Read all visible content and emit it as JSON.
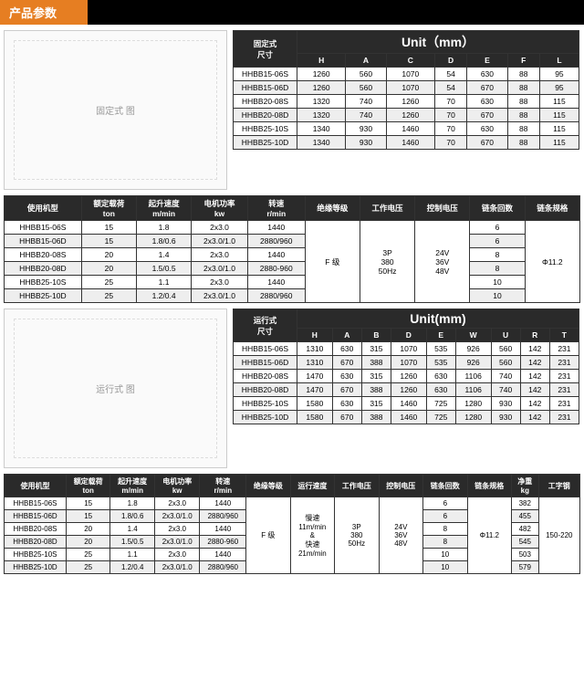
{
  "header": "产品参数",
  "t1": {
    "title": "固定式\n尺寸",
    "unit": "Unit（mm）",
    "cols": [
      "H",
      "A",
      "C",
      "D",
      "E",
      "F",
      "L"
    ],
    "rows": [
      [
        "HHBB15-06S",
        "1260",
        "560",
        "1070",
        "54",
        "630",
        "88",
        "95"
      ],
      [
        "HHBB15-06D",
        "1260",
        "560",
        "1070",
        "54",
        "670",
        "88",
        "95"
      ],
      [
        "HHBB20-08S",
        "1320",
        "740",
        "1260",
        "70",
        "630",
        "88",
        "115"
      ],
      [
        "HHBB20-08D",
        "1320",
        "740",
        "1260",
        "70",
        "670",
        "88",
        "115"
      ],
      [
        "HHBB25-10S",
        "1340",
        "930",
        "1460",
        "70",
        "630",
        "88",
        "115"
      ],
      [
        "HHBB25-10D",
        "1340",
        "930",
        "1460",
        "70",
        "670",
        "88",
        "115"
      ]
    ]
  },
  "t2": {
    "cols": [
      "使用机型",
      "额定载荷\nton",
      "起升速度\nm/min",
      "电机功率\nkw",
      "转速\nr/min",
      "绝缘等级",
      "工作电压",
      "控制电压",
      "链条回数",
      "链条规格"
    ],
    "rows": [
      [
        "HHBB15-06S",
        "15",
        "1.8",
        "2x3.0",
        "1440",
        "",
        "",
        "",
        "6",
        ""
      ],
      [
        "HHBB15-06D",
        "15",
        "1.8/0.6",
        "2x3.0/1.0",
        "2880/960",
        "",
        "",
        "",
        "6",
        ""
      ],
      [
        "HHBB20-08S",
        "20",
        "1.4",
        "2x3.0",
        "1440",
        "",
        "",
        "",
        "8",
        ""
      ],
      [
        "HHBB20-08D",
        "20",
        "1.5/0.5",
        "2x3.0/1.0",
        "2880-960",
        "",
        "",
        "",
        "8",
        ""
      ],
      [
        "HHBB25-10S",
        "25",
        "1.1",
        "2x3.0",
        "1440",
        "",
        "",
        "",
        "10",
        ""
      ],
      [
        "HHBB25-10D",
        "25",
        "1.2/0.4",
        "2x3.0/1.0",
        "2880/960",
        "",
        "",
        "",
        "10",
        ""
      ]
    ],
    "merged": {
      "c5": "F 级",
      "c6": "3P\n380\n50Hz",
      "c7": "24V\n36V\n48V",
      "c9": "Φ11.2"
    }
  },
  "t3": {
    "title": "运行式\n尺寸",
    "unit": "Unit(mm)",
    "cols": [
      "H",
      "A",
      "B",
      "D",
      "E",
      "W",
      "U",
      "R",
      "T"
    ],
    "rows": [
      [
        "HHBB15-06S",
        "1310",
        "630",
        "315",
        "1070",
        "535",
        "926",
        "560",
        "142",
        "231"
      ],
      [
        "HHBB15-06D",
        "1310",
        "670",
        "388",
        "1070",
        "535",
        "926",
        "560",
        "142",
        "231"
      ],
      [
        "HHBB20-08S",
        "1470",
        "630",
        "315",
        "1260",
        "630",
        "1106",
        "740",
        "142",
        "231"
      ],
      [
        "HHBB20-08D",
        "1470",
        "670",
        "388",
        "1260",
        "630",
        "1106",
        "740",
        "142",
        "231"
      ],
      [
        "HHBB25-10S",
        "1580",
        "630",
        "315",
        "1460",
        "725",
        "1280",
        "930",
        "142",
        "231"
      ],
      [
        "HHBB25-10D",
        "1580",
        "670",
        "388",
        "1460",
        "725",
        "1280",
        "930",
        "142",
        "231"
      ]
    ]
  },
  "t4": {
    "cols": [
      "使用机型",
      "额定载荷\nton",
      "起升速度\nm/min",
      "电机功率\nkw",
      "转速\nr/min",
      "绝缘等级",
      "运行速度",
      "工作电压",
      "控制电压",
      "链条回数",
      "链条规格",
      "净重\nkg",
      "工字钢"
    ],
    "rows": [
      [
        "HHBB15-06S",
        "15",
        "1.8",
        "2x3.0",
        "1440",
        "",
        "",
        "",
        "",
        "6",
        "",
        "382",
        ""
      ],
      [
        "HHBB15-06D",
        "15",
        "1.8/0.6",
        "2x3.0/1.0",
        "2880/960",
        "",
        "",
        "",
        "",
        "6",
        "",
        "455",
        ""
      ],
      [
        "HHBB20-08S",
        "20",
        "1.4",
        "2x3.0",
        "1440",
        "",
        "",
        "",
        "",
        "8",
        "",
        "482",
        ""
      ],
      [
        "HHBB20-08D",
        "20",
        "1.5/0.5",
        "2x3.0/1.0",
        "2880-960",
        "",
        "",
        "",
        "",
        "8",
        "",
        "545",
        ""
      ],
      [
        "HHBB25-10S",
        "25",
        "1.1",
        "2x3.0",
        "1440",
        "",
        "",
        "",
        "",
        "10",
        "",
        "503",
        ""
      ],
      [
        "HHBB25-10D",
        "25",
        "1.2/0.4",
        "2x3.0/1.0",
        "2880/960",
        "",
        "",
        "",
        "",
        "10",
        "",
        "579",
        ""
      ]
    ],
    "merged": {
      "c5": "F 级",
      "c6": "慢速\n11m/min\n&\n快速\n21m/min",
      "c7": "3P\n380\n50Hz",
      "c8": "24V\n36V\n48V",
      "c10": "Φ11.2",
      "c12": "150-220"
    }
  },
  "diagLabels": {
    "d1": "固定式 图",
    "d2": "运行式 图"
  }
}
